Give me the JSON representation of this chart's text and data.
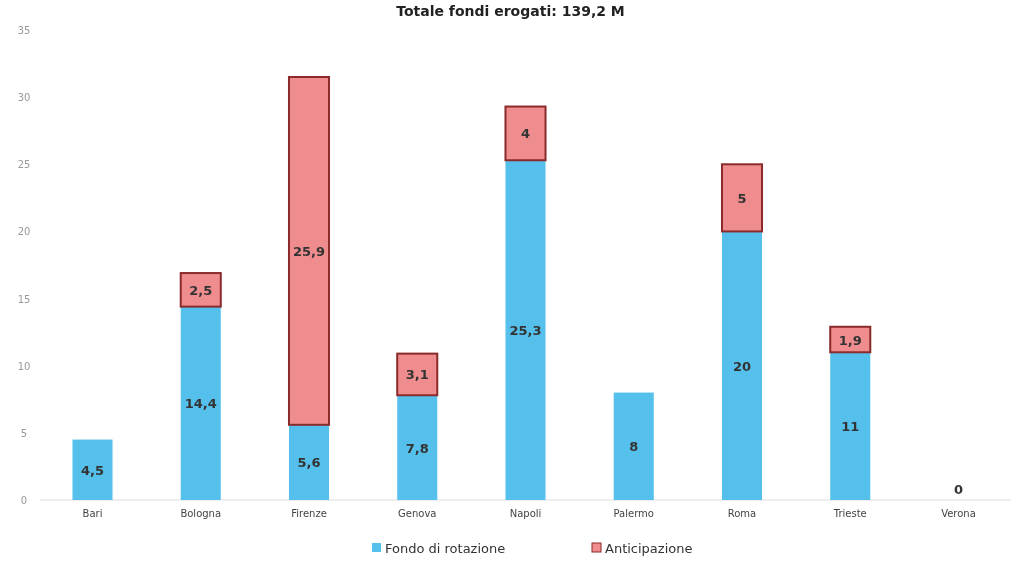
{
  "chart_data": {
    "type": "bar",
    "title": "Totale fondi erogati: 139,2 M",
    "categories": [
      "Bari",
      "Bologna",
      "Firenze",
      "Genova",
      "Napoli",
      "Palermo",
      "Roma",
      "Trieste",
      "Verona"
    ],
    "stacked": true,
    "series": [
      {
        "name": "Fondo di rotazione",
        "color": "#55c0ec",
        "values": [
          4.5,
          14.4,
          5.6,
          7.8,
          25.3,
          8,
          20,
          11,
          0
        ],
        "value_labels": [
          "4,5",
          "14,4",
          "5,6",
          "7,8",
          "25,3",
          "8",
          "20",
          "11",
          "0"
        ]
      },
      {
        "name": "Anticipazione",
        "color": "#ef8c8e",
        "values": [
          null,
          2.5,
          25.9,
          3.1,
          4,
          null,
          5,
          1.9,
          null
        ],
        "value_labels": [
          null,
          "2,5",
          "25,9",
          "3,1",
          "4",
          null,
          "5",
          "1,9",
          null
        ]
      }
    ],
    "ylim": [
      0,
      35
    ],
    "yticks": [
      0,
      5,
      10,
      15,
      20,
      25,
      30,
      35
    ],
    "grid": false,
    "legend": "bottom"
  }
}
